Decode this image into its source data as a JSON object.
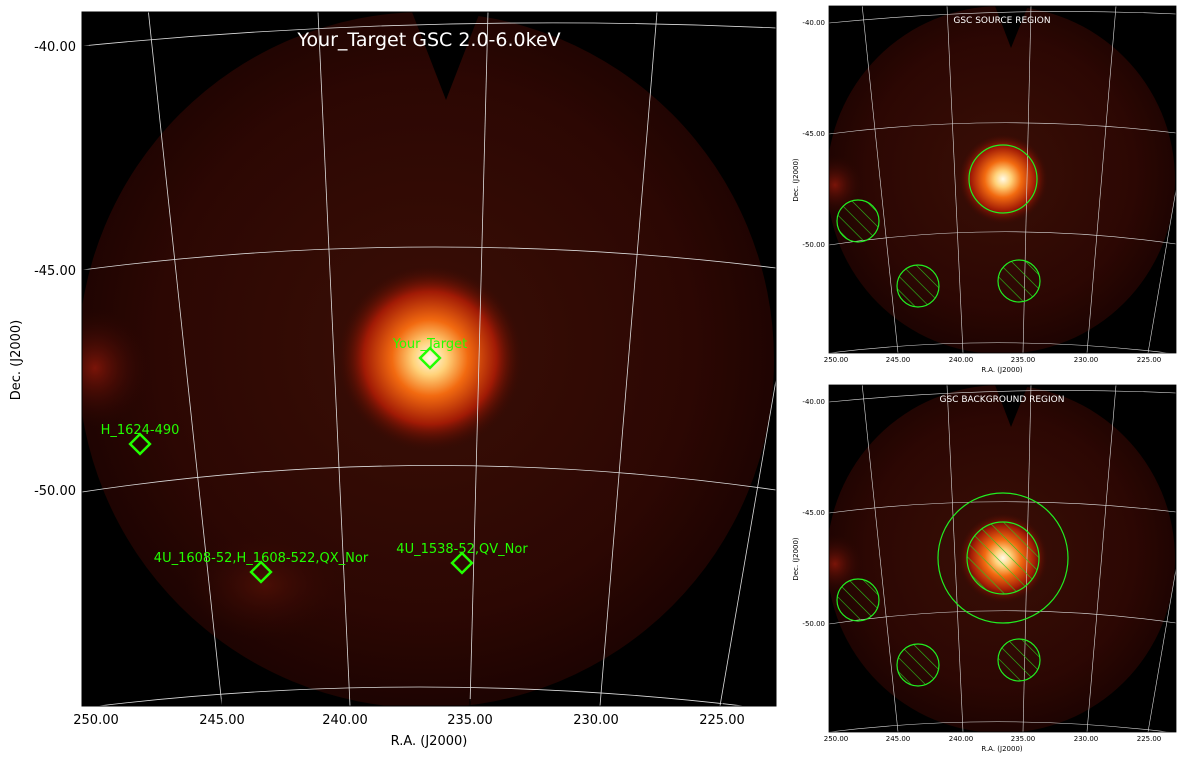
{
  "main": {
    "title": "Your_Target GSC 2.0-6.0keV",
    "xlabel": "R.A. (J2000)",
    "ylabel": "Dec. (J2000)",
    "xticks": [
      "250.00",
      "245.00",
      "240.00",
      "235.00",
      "230.00",
      "225.00"
    ],
    "yticks": [
      "-40.00",
      "-45.00",
      "-50.00"
    ],
    "sources": [
      {
        "label": "Your_Target"
      },
      {
        "label": "H_1624-490"
      },
      {
        "label": "4U_1608-52,H_1608-522,QX_Nor"
      },
      {
        "label": "4U_1538-52,QV_Nor"
      }
    ],
    "colors": {
      "marker": "#22ff00",
      "grid": "#dddddd",
      "title": "#ffffff"
    }
  },
  "source_panel": {
    "title": "GSC SOURCE REGION",
    "xlabel": "R.A. (J2000)",
    "ylabel": "Dec. (J2000)",
    "xticks": [
      "250.00",
      "245.00",
      "240.00",
      "235.00",
      "230.00",
      "225.00"
    ],
    "yticks": [
      "-40.00",
      "-45.00",
      "-50.00"
    ]
  },
  "background_panel": {
    "title": "GSC BACKGROUND REGION",
    "xlabel": "R.A. (J2000)",
    "ylabel": "Dec. (J2000)",
    "xticks": [
      "250.00",
      "245.00",
      "240.00",
      "235.00",
      "230.00",
      "225.00"
    ],
    "yticks": [
      "-40.00",
      "-45.00",
      "-50.00"
    ]
  }
}
